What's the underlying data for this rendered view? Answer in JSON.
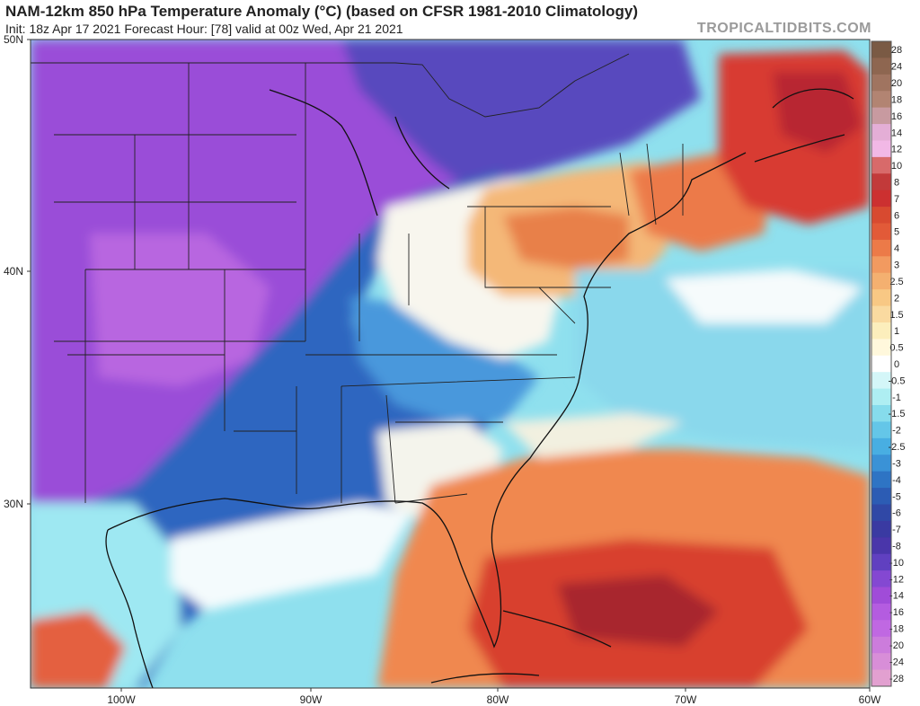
{
  "title": "NAM-12km 850 hPa Temperature Anomaly (°C) (based on CFSR 1981-2010 Climatology)",
  "subtitle": "Init: 18z Apr 17 2021   Forecast Hour: [78]   valid at 00z Wed, Apr 21 2021",
  "brand": "TROPICALTIDBITS.COM",
  "latitude_labels": [
    "50N",
    "40N",
    "30N"
  ],
  "longitude_labels": [
    "100W",
    "90W",
    "80W",
    "70W",
    "60W"
  ],
  "colorbar": {
    "levels": [
      "28",
      "24",
      "20",
      "18",
      "16",
      "14",
      "12",
      "10",
      "8",
      "7",
      "6",
      "5",
      "4",
      "3",
      "2.5",
      "2",
      "1.5",
      "1",
      "0.5",
      "0",
      "-0.5",
      "-1",
      "-1.5",
      "-2",
      "-2.5",
      "-3",
      "-4",
      "-5",
      "-6",
      "-7",
      "-8",
      "-10",
      "-12",
      "-14",
      "-16",
      "-18",
      "-20",
      "-24",
      "-28"
    ],
    "colors": [
      "#7a5a44",
      "#8e6650",
      "#a07460",
      "#b28472",
      "#c89aa0",
      "#e4aed6",
      "#f2b8e6",
      "#d86a6a",
      "#c23a3a",
      "#cc3030",
      "#d84a30",
      "#e25a38",
      "#ec7a48",
      "#f29a60",
      "#f4b070",
      "#f8c884",
      "#fadaa0",
      "#fceebc",
      "#fff8dc",
      "#ffffff",
      "#d4f6f8",
      "#aeeef2",
      "#86dcec",
      "#64c6e8",
      "#48aee2",
      "#3a92d6",
      "#2e74c4",
      "#2c5cb4",
      "#3048a6",
      "#3a3aa2",
      "#4a36aa",
      "#6040c0",
      "#8448d2",
      "#a04cd8",
      "#b45ce0",
      "#c068e2",
      "#cc7cdc",
      "#d88ed8",
      "#e2a0d0"
    ]
  }
}
